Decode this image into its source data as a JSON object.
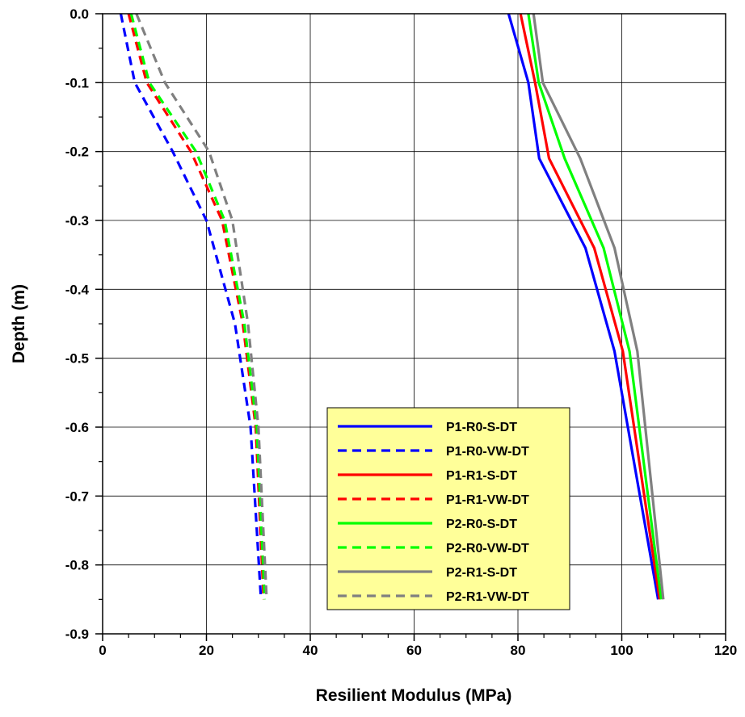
{
  "chart_data": {
    "type": "line",
    "title": "",
    "xlabel": "Resilient Modulus (MPa)",
    "ylabel": "Depth (m)",
    "xlim": [
      0,
      120
    ],
    "ylim": [
      -0.9,
      0.0
    ],
    "x_ticks": [
      "0",
      "20",
      "40",
      "60",
      "80",
      "100",
      "120"
    ],
    "y_ticks": [
      "0.0",
      "-0.1",
      "-0.2",
      "-0.3",
      "-0.4",
      "-0.5",
      "-0.6",
      "-0.7",
      "-0.8",
      "-0.9"
    ],
    "grid": true,
    "legend_position": "bottom-center",
    "legend_background": "#ffff99",
    "series": [
      {
        "name": "P1-R0-S-DT",
        "color": "#0000ff",
        "style": "solid",
        "x": [
          78.2,
          82.0,
          84.1,
          93.0,
          98.6,
          107.0
        ],
        "y": [
          0.0,
          -0.1,
          -0.21,
          -0.34,
          -0.49,
          -0.85
        ]
      },
      {
        "name": "P1-R0-VW-DT",
        "color": "#0000ff",
        "style": "dashed",
        "x": [
          3.5,
          6.2,
          13.5,
          20.0,
          25.5,
          28.5,
          30.5
        ],
        "y": [
          0.0,
          -0.1,
          -0.2,
          -0.3,
          -0.45,
          -0.6,
          -0.85
        ]
      },
      {
        "name": "P1-R1-S-DT",
        "color": "#ff0000",
        "style": "solid",
        "x": [
          80.5,
          83.3,
          86.0,
          94.7,
          100.2,
          107.3
        ],
        "y": [
          0.0,
          -0.1,
          -0.21,
          -0.34,
          -0.49,
          -0.85
        ]
      },
      {
        "name": "P1-R1-VW-DT",
        "color": "#ff0000",
        "style": "dashed",
        "x": [
          5.0,
          8.5,
          17.0,
          23.0,
          27.0,
          29.5,
          31.0
        ],
        "y": [
          0.0,
          -0.1,
          -0.2,
          -0.3,
          -0.45,
          -0.6,
          -0.85
        ]
      },
      {
        "name": "P2-R0-S-DT",
        "color": "#00ff00",
        "style": "solid",
        "x": [
          82.0,
          84.0,
          89.0,
          96.5,
          101.5,
          107.6
        ],
        "y": [
          0.0,
          -0.1,
          -0.21,
          -0.34,
          -0.49,
          -0.85
        ]
      },
      {
        "name": "P2-R0-VW-DT",
        "color": "#00ff00",
        "style": "dashed",
        "x": [
          5.5,
          9.0,
          18.0,
          23.5,
          27.3,
          29.7,
          31.2
        ],
        "y": [
          0.0,
          -0.1,
          -0.2,
          -0.3,
          -0.45,
          -0.6,
          -0.85
        ]
      },
      {
        "name": "P2-R1-S-DT",
        "color": "#808080",
        "style": "solid",
        "x": [
          83.0,
          84.8,
          92.0,
          98.6,
          103.0,
          108.0
        ],
        "y": [
          0.0,
          -0.1,
          -0.21,
          -0.34,
          -0.49,
          -0.85
        ]
      },
      {
        "name": "P2-R1-VW-DT",
        "color": "#808080",
        "style": "dashed",
        "x": [
          6.5,
          12.0,
          20.5,
          25.0,
          28.0,
          30.0,
          31.6
        ],
        "y": [
          0.0,
          -0.1,
          -0.2,
          -0.3,
          -0.45,
          -0.6,
          -0.85
        ]
      }
    ]
  }
}
